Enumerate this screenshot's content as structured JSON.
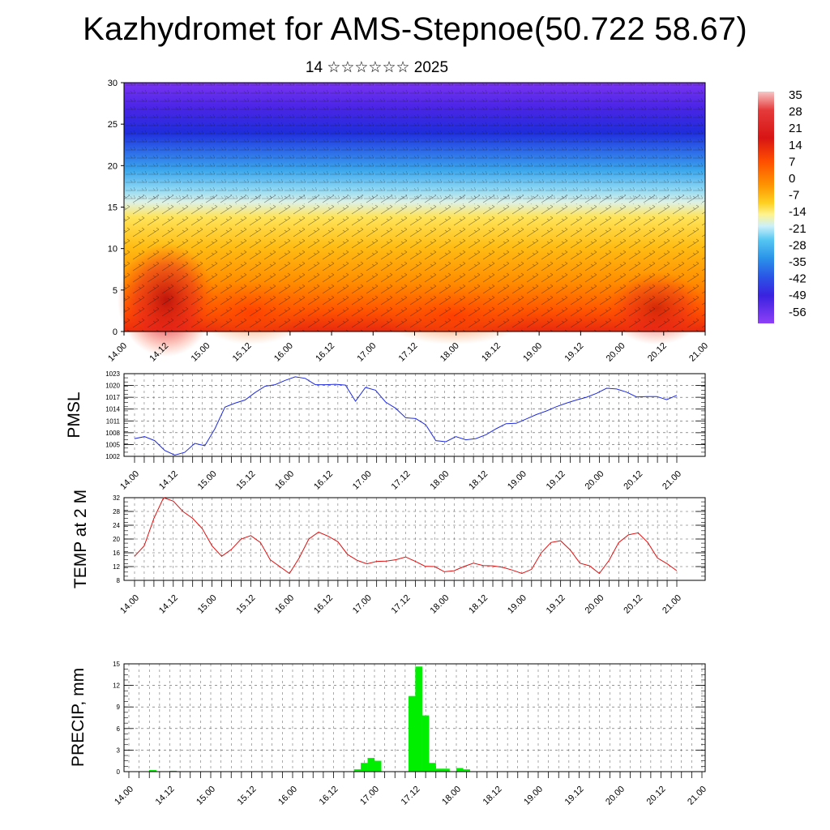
{
  "header": {
    "title": "Kazhydromet for AMS-Stepnoe(50.722 58.67)",
    "subtitle": "14 ☆☆☆☆☆☆ 2025"
  },
  "colors": {
    "pmsl_line": "#1f2be0",
    "temp_line": "#e01010",
    "precip_bar": "#00ee00",
    "grid": "#555555"
  },
  "chart_data": [
    {
      "type": "heatmap",
      "name_hint": "vertical cross-section",
      "ylim": [
        0,
        30
      ],
      "yticks": [
        "0",
        "5",
        "10",
        "15",
        "20",
        "25",
        "30"
      ],
      "xticks": [
        "14.00",
        "14.12",
        "15.00",
        "15.12",
        "16.00",
        "16.12",
        "17.00",
        "17.12",
        "18.00",
        "18.12",
        "19.00",
        "19.12",
        "20.00",
        "20.12",
        "21.00"
      ],
      "colorbar": {
        "labels": [
          "35",
          "28",
          "21",
          "14",
          "7",
          "0",
          "-7",
          "-14",
          "-21",
          "-28",
          "-35",
          "-42",
          "-49",
          "-56"
        ],
        "colors": [
          "#f5b3b3",
          "#e53232",
          "#cc1010",
          "#ff4a00",
          "#ff8c00",
          "#ffc400",
          "#fff07a",
          "#cfeffa",
          "#4cc3f0",
          "#2b8ee8",
          "#2a4fe6",
          "#3a1ee0",
          "#5b1ef0",
          "#8b3cf5"
        ]
      },
      "notes": "wind barbs overlay"
    },
    {
      "type": "line",
      "ylabel": "PMSL",
      "ylim": [
        1002,
        1023
      ],
      "yticks": [
        "1002",
        "1005",
        "1008",
        "1011",
        "1014",
        "1017",
        "1020",
        "1023"
      ],
      "xticks": [
        "14.00",
        "14.12",
        "15.00",
        "15.12",
        "16.00",
        "16.12",
        "17.00",
        "17.12",
        "18.00",
        "18.12",
        "19.00",
        "19.12",
        "20.00",
        "20.12",
        "21.00"
      ],
      "series": [
        {
          "values": [
            1006.5,
            1007,
            1006,
            1003.5,
            1002.3,
            1003,
            1005.3,
            1004.7,
            1009,
            1014.5,
            1015.5,
            1016.3,
            1018.2,
            1019.8,
            1020.2,
            1021.3,
            1022.2,
            1021.8,
            1020.2,
            1020.2,
            1020.3,
            1020.1,
            1016,
            1019.5,
            1018.8,
            1015.8,
            1014.2,
            1011.8,
            1011.6,
            1010,
            1006,
            1005.7,
            1007,
            1006.2,
            1006.5,
            1007.5,
            1009,
            1010.3,
            1010.4,
            1011.5,
            1012.6,
            1013.5,
            1014.6,
            1015.5,
            1016.3,
            1017,
            1018,
            1019.3,
            1019.1,
            1018.3,
            1017.1,
            1017.2,
            1017.2,
            1016.4,
            1017.5
          ]
        }
      ]
    },
    {
      "type": "line",
      "ylabel": "TEMP at 2 M",
      "ylim": [
        8,
        32
      ],
      "yticks": [
        "8",
        "12",
        "16",
        "20",
        "24",
        "28",
        "32"
      ],
      "xticks": [
        "14.00",
        "14.12",
        "15.00",
        "15.12",
        "16.00",
        "16.12",
        "17.00",
        "17.12",
        "18.00",
        "18.12",
        "19.00",
        "19.12",
        "20.00",
        "20.12",
        "21.00"
      ],
      "series": [
        {
          "values": [
            15,
            18,
            26,
            32,
            31,
            28,
            26,
            23,
            18,
            15,
            17,
            20,
            21,
            19,
            14,
            12,
            10,
            14.5,
            20,
            22,
            20.8,
            19.2,
            15.5,
            13.8,
            12.8,
            13.5,
            13.6,
            14,
            14.8,
            13.5,
            12.1,
            12,
            10.5,
            10.8,
            12,
            13,
            12.3,
            12.2,
            11.8,
            11,
            10,
            11.2,
            16,
            19,
            19.5,
            16.8,
            13,
            12.2,
            10,
            13.8,
            19,
            21.2,
            21.8,
            19,
            14.5,
            12.8,
            10.8
          ]
        }
      ]
    },
    {
      "type": "bar",
      "ylabel": "PRECIP, mm",
      "ylim": [
        0,
        15
      ],
      "yticks": [
        "0",
        "3",
        "6",
        "9",
        "12",
        "15"
      ],
      "xticks": [
        "14.00",
        "14.12",
        "15.00",
        "15.12",
        "16.00",
        "16.12",
        "17.00",
        "17.12",
        "18.00",
        "18.12",
        "19.00",
        "19.12",
        "20.00",
        "20.12",
        "21.00"
      ],
      "values": [
        0,
        0,
        0,
        0.2,
        0,
        0,
        0.1,
        0,
        0,
        0,
        0,
        0,
        0,
        0,
        0,
        0,
        0,
        0,
        0,
        0,
        0,
        0,
        0,
        0,
        0,
        0,
        0,
        0,
        0,
        0,
        0,
        0,
        0,
        0.3,
        1.2,
        1.9,
        1.5,
        0,
        0,
        0,
        0,
        10.5,
        14.6,
        7.8,
        1.2,
        0.4,
        0.4,
        0,
        0.5,
        0.3,
        0,
        0,
        0,
        0,
        0,
        0,
        0,
        0,
        0,
        0,
        0,
        0,
        0,
        0,
        0,
        0,
        0,
        0,
        0,
        0,
        0,
        0,
        0,
        0,
        0,
        0,
        0,
        0,
        0,
        0
      ]
    }
  ]
}
